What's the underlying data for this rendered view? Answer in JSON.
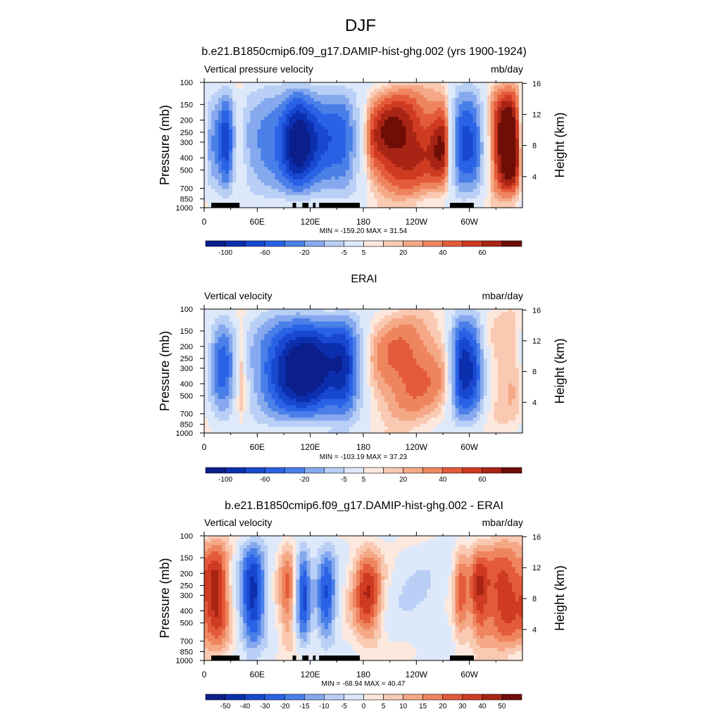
{
  "figure": {
    "title": "DJF"
  },
  "colors": {
    "scale_a": [
      "#0a1f8c",
      "#0c2fae",
      "#1848cf",
      "#2a62e6",
      "#4a7fe8",
      "#86a9ee",
      "#b9cff5",
      "#dde9fa",
      "#fde8dd",
      "#f9c9b2",
      "#f5a886",
      "#ee855f",
      "#e35b3a",
      "#cf3a22",
      "#a82414",
      "#6e0e07"
    ],
    "scale_b": [
      "#0a1f8c",
      "#0c2fae",
      "#1848cf",
      "#2a62e6",
      "#4a7fe8",
      "#86a9ee",
      "#b9cff5",
      "#dde9fa",
      "#fde8dd",
      "#f9c9b2",
      "#f5a886",
      "#ee855f",
      "#e35b3a",
      "#cf3a22",
      "#a82414",
      "#6e0e07"
    ],
    "land": "#000000"
  },
  "chart_data": [
    {
      "type": "heatmap",
      "title": "b.e21.B1850cmip6.f09_g17.DAMIP-hist-ghg.002 (yrs 1900-1924)",
      "left_label": "Vertical pressure velocity",
      "right_label": "mb/day",
      "ylabel": "Pressure (mb)",
      "y2label": "Height (km)",
      "x_ticks": [
        "0",
        "60E",
        "120E",
        "180",
        "120W",
        "60W"
      ],
      "x_tick_lon": [
        0,
        60,
        120,
        180,
        240,
        300
      ],
      "xlim": [
        0,
        360
      ],
      "y_ticks": [
        "100",
        "150",
        "200",
        "250",
        "300",
        "400",
        "500",
        "700",
        "850",
        "1000"
      ],
      "y_tick_p": [
        100,
        150,
        200,
        250,
        300,
        400,
        500,
        700,
        850,
        1000
      ],
      "ylim": [
        1000,
        100
      ],
      "y_log": true,
      "y2_ticks": [
        "4",
        "8",
        "12",
        "16"
      ],
      "y2_tick_km": [
        4,
        8,
        12,
        16
      ],
      "stats": "MIN = -159.20  MAX =  31.54",
      "min": -159.2,
      "max": 31.54,
      "colorbar_labels": [
        "-100",
        "-60",
        "-20",
        "-5",
        "5",
        "20",
        "40",
        "60"
      ],
      "colorbar_label_slots": [
        1,
        3,
        5,
        7,
        8,
        10,
        12,
        14
      ],
      "n_colors": 16,
      "zones": [
        {
          "lon": 10,
          "amp": -60,
          "w": 8
        },
        {
          "lon": 25,
          "amp": -90,
          "w": 6
        },
        {
          "lon": 40,
          "amp": 30,
          "w": 4
        },
        {
          "lon": 75,
          "amp": -70,
          "w": 25
        },
        {
          "lon": 105,
          "amp": -85,
          "w": 12
        },
        {
          "lon": 130,
          "amp": -90,
          "w": 20
        },
        {
          "lon": 160,
          "amp": -60,
          "w": 12
        },
        {
          "lon": 220,
          "amp": 30,
          "w": 35
        },
        {
          "lon": 275,
          "amp": 20,
          "w": 12
        },
        {
          "lon": 290,
          "amp": -95,
          "w": 8
        },
        {
          "lon": 305,
          "amp": -80,
          "w": 8
        },
        {
          "lon": 345,
          "amp": 40,
          "w": 15
        }
      ],
      "land": [
        [
          8,
          40
        ],
        [
          100,
          104
        ],
        [
          111,
          118
        ],
        [
          123,
          126
        ],
        [
          130,
          176
        ],
        [
          278,
          305
        ]
      ]
    },
    {
      "type": "heatmap",
      "title": "ERAI",
      "left_label": "Vertical velocity",
      "right_label": "mbar/day",
      "ylabel": "Pressure (mb)",
      "y2label": "Height (km)",
      "x_ticks": [
        "0",
        "60E",
        "120E",
        "180",
        "120W",
        "60W"
      ],
      "x_tick_lon": [
        0,
        60,
        120,
        180,
        240,
        300
      ],
      "xlim": [
        0,
        360
      ],
      "y_ticks": [
        "100",
        "150",
        "200",
        "250",
        "300",
        "400",
        "500",
        "700",
        "850",
        "1000"
      ],
      "y_tick_p": [
        100,
        150,
        200,
        250,
        300,
        400,
        500,
        700,
        850,
        1000
      ],
      "ylim": [
        1000,
        100
      ],
      "y_log": true,
      "y2_ticks": [
        "4",
        "8",
        "12",
        "16"
      ],
      "y2_tick_km": [
        4,
        8,
        12,
        16
      ],
      "stats": "MIN = -103.19  MAX =  37.23",
      "min": -103.19,
      "max": 37.23,
      "colorbar_labels": [
        "-100",
        "-60",
        "-20",
        "-5",
        "5",
        "20",
        "40",
        "60"
      ],
      "colorbar_label_slots": [
        1,
        3,
        5,
        7,
        8,
        10,
        12,
        14
      ],
      "n_colors": 16,
      "zones": [
        {
          "lon": 20,
          "amp": -55,
          "w": 10
        },
        {
          "lon": 42,
          "amp": 25,
          "w": 5
        },
        {
          "lon": 90,
          "amp": -60,
          "w": 28
        },
        {
          "lon": 125,
          "amp": -75,
          "w": 25
        },
        {
          "lon": 160,
          "amp": -55,
          "w": 12
        },
        {
          "lon": 230,
          "amp": 22,
          "w": 35
        },
        {
          "lon": 290,
          "amp": -75,
          "w": 8
        },
        {
          "lon": 305,
          "amp": -60,
          "w": 8
        },
        {
          "lon": 345,
          "amp": 10,
          "w": 15
        }
      ],
      "land": []
    },
    {
      "type": "heatmap",
      "title": "b.e21.B1850cmip6.f09_g17.DAMIP-hist-ghg.002 - ERAI",
      "left_label": "Vertical velocity",
      "right_label": "mbar/day",
      "ylabel": "Pressure (mb)",
      "y2label": "Height (km)",
      "x_ticks": [
        "0",
        "60E",
        "120E",
        "180",
        "120W",
        "60W"
      ],
      "x_tick_lon": [
        0,
        60,
        120,
        180,
        240,
        300
      ],
      "xlim": [
        0,
        360
      ],
      "y_ticks": [
        "100",
        "150",
        "200",
        "250",
        "300",
        "400",
        "500",
        "700",
        "850",
        "1000"
      ],
      "y_tick_p": [
        100,
        150,
        200,
        250,
        300,
        400,
        500,
        700,
        850,
        1000
      ],
      "ylim": [
        1000,
        100
      ],
      "y_log": true,
      "y2_ticks": [
        "4",
        "8",
        "12",
        "16"
      ],
      "y2_tick_km": [
        4,
        8,
        12,
        16
      ],
      "stats": "MIN = -68.94  MAX =  40.47",
      "min": -68.94,
      "max": 40.47,
      "colorbar_labels": [
        "-50",
        "-40",
        "-30",
        "-20",
        "-15",
        "-10",
        "-5",
        "0",
        "5",
        "10",
        "15",
        "20",
        "30",
        "40",
        "50"
      ],
      "colorbar_label_slots": [
        1,
        2,
        3,
        4,
        5,
        6,
        7,
        8,
        9,
        10,
        11,
        12,
        13,
        14,
        15
      ],
      "n_colors": 16,
      "zones": [
        {
          "lon": 15,
          "amp": 30,
          "w": 10
        },
        {
          "lon": 55,
          "amp": -55,
          "w": 10
        },
        {
          "lon": 95,
          "amp": 20,
          "w": 8
        },
        {
          "lon": 112,
          "amp": -45,
          "w": 6
        },
        {
          "lon": 138,
          "amp": -40,
          "w": 8
        },
        {
          "lon": 185,
          "amp": 28,
          "w": 12
        },
        {
          "lon": 240,
          "amp": -8,
          "w": 25
        },
        {
          "lon": 290,
          "amp": 20,
          "w": 6
        },
        {
          "lon": 310,
          "amp": 22,
          "w": 8
        },
        {
          "lon": 340,
          "amp": 30,
          "w": 18
        }
      ],
      "land": [
        [
          8,
          40
        ],
        [
          100,
          104
        ],
        [
          111,
          118
        ],
        [
          123,
          126
        ],
        [
          130,
          176
        ],
        [
          278,
          305
        ]
      ]
    }
  ]
}
